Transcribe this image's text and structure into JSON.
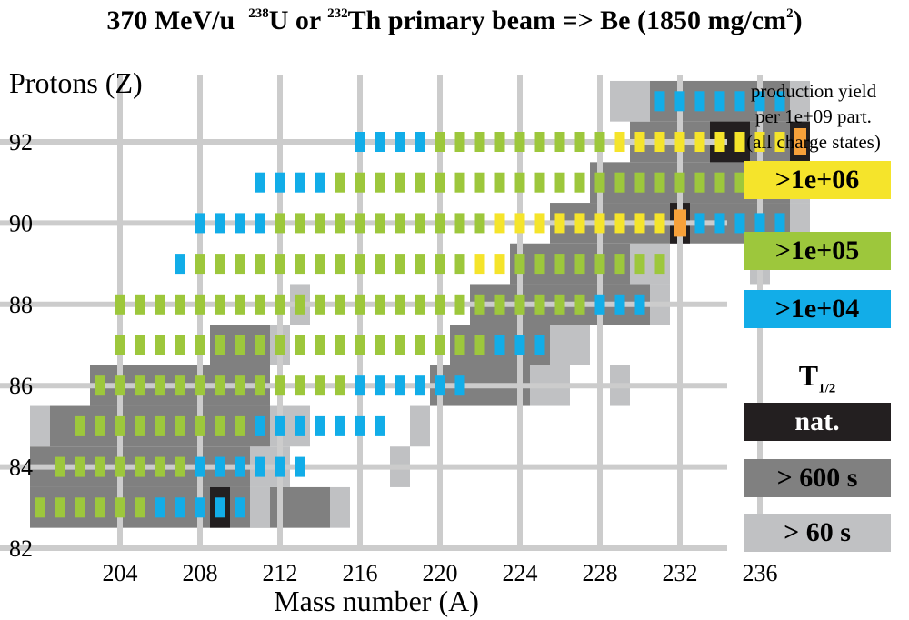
{
  "title": {
    "energy": "370 MeV/u",
    "iso1_mass": "238",
    "iso1_sym": "U",
    "or": "or",
    "iso2_mass": "232",
    "iso2_sym": "Th",
    "rest": "primary beam => Be (1850 mg/cm",
    "exp": "2",
    "close": ")"
  },
  "legend": {
    "yield_lines": [
      "production yield",
      "per 1e+09 part.",
      "(all charge states)"
    ],
    "yield": [
      {
        "label": ">1e+06",
        "color": "#f5e42b"
      },
      {
        "label": ">1e+05",
        "color": "#9dc73c"
      },
      {
        "label": ">1e+04",
        "color": "#12ade8"
      }
    ],
    "thalf_T": "T",
    "thalf_sub": "1/2",
    "thalf": [
      {
        "label": "nat.",
        "color": "#231f20",
        "text_color": "#ffffff"
      },
      {
        "label": "> 600 s",
        "color": "#808080",
        "text_color": "#000000"
      },
      {
        "label": "> 60 s",
        "color": "#c0c1c3",
        "text_color": "#000000"
      }
    ]
  },
  "chart_data": {
    "type": "heatmap",
    "title": "370 MeV/u 238U or 232Th primary beam => Be (1850 mg/cm2)",
    "xlabel": "Mass number (A)",
    "ylabel": "Protons (Z)",
    "xlim": [
      200,
      240
    ],
    "ylim": [
      82,
      93.5
    ],
    "x_ticks": [
      204,
      208,
      212,
      216,
      220,
      224,
      228,
      232,
      236
    ],
    "y_ticks": [
      82,
      84,
      86,
      88,
      90,
      92
    ],
    "grid": true,
    "colors": {
      "yield_1e6": "#f5e42b",
      "yield_1e5": "#9dc73c",
      "yield_1e4": "#12ade8",
      "highlight": "#f7a13a",
      "natural": "#231f20",
      "gt600": "#808080",
      "gt60": "#c0c1c3"
    },
    "halflife_cells": [
      {
        "Z": 83,
        "A_from": 200,
        "A_to": 211,
        "class": "gt600"
      },
      {
        "Z": 83,
        "A_from": 212,
        "A_to": 214,
        "class": "gt600"
      },
      {
        "Z": 83,
        "A_from": 211,
        "A_to": 211,
        "class": "gt60"
      },
      {
        "Z": 83,
        "A_from": 215,
        "A_to": 215,
        "class": "gt60"
      },
      {
        "Z": 84,
        "A_from": 200,
        "A_to": 210,
        "class": "gt600"
      },
      {
        "Z": 84,
        "A_from": 211,
        "A_to": 212,
        "class": "gt60"
      },
      {
        "Z": 84,
        "A_from": 218,
        "A_to": 218,
        "class": "gt60"
      },
      {
        "Z": 85,
        "A_from": 200,
        "A_to": 200,
        "class": "gt60"
      },
      {
        "Z": 85,
        "A_from": 201,
        "A_to": 211,
        "class": "gt600"
      },
      {
        "Z": 85,
        "A_from": 212,
        "A_to": 213,
        "class": "gt60"
      },
      {
        "Z": 85,
        "A_from": 219,
        "A_to": 219,
        "class": "gt60"
      },
      {
        "Z": 86,
        "A_from": 203,
        "A_to": 211,
        "class": "gt600"
      },
      {
        "Z": 86,
        "A_from": 220,
        "A_to": 224,
        "class": "gt600"
      },
      {
        "Z": 86,
        "A_from": 225,
        "A_to": 226,
        "class": "gt60"
      },
      {
        "Z": 86,
        "A_from": 229,
        "A_to": 229,
        "class": "gt60"
      },
      {
        "Z": 87,
        "A_from": 209,
        "A_to": 211,
        "class": "gt600"
      },
      {
        "Z": 87,
        "A_from": 212,
        "A_to": 212,
        "class": "gt60"
      },
      {
        "Z": 87,
        "A_from": 221,
        "A_to": 225,
        "class": "gt600"
      },
      {
        "Z": 87,
        "A_from": 226,
        "A_to": 226,
        "class": "gt60"
      },
      {
        "Z": 87,
        "A_from": 227,
        "A_to": 227,
        "class": "gt60"
      },
      {
        "Z": 88,
        "A_from": 213,
        "A_to": 213,
        "class": "gt60"
      },
      {
        "Z": 88,
        "A_from": 222,
        "A_to": 230,
        "class": "gt600"
      },
      {
        "Z": 88,
        "A_from": 231,
        "A_to": 231,
        "class": "gt60"
      },
      {
        "Z": 89,
        "A_from": 224,
        "A_to": 229,
        "class": "gt600"
      },
      {
        "Z": 89,
        "A_from": 230,
        "A_to": 230,
        "class": "gt60"
      },
      {
        "Z": 89,
        "A_from": 231,
        "A_to": 231,
        "class": "gt60"
      },
      {
        "Z": 89,
        "A_from": 236,
        "A_to": 236,
        "class": "gt60"
      },
      {
        "Z": 90,
        "A_from": 226,
        "A_to": 237,
        "class": "gt600"
      },
      {
        "Z": 90,
        "A_from": 238,
        "A_to": 238,
        "class": "gt60"
      },
      {
        "Z": 91,
        "A_from": 228,
        "A_to": 237,
        "class": "gt600"
      },
      {
        "Z": 91,
        "A_from": 238,
        "A_to": 238,
        "class": "gt60"
      },
      {
        "Z": 92,
        "A_from": 230,
        "A_to": 238,
        "class": "gt600"
      },
      {
        "Z": 93,
        "A_from": 229,
        "A_to": 230,
        "class": "gt60"
      },
      {
        "Z": 93,
        "A_from": 231,
        "A_to": 237,
        "class": "gt600"
      },
      {
        "Z": 93,
        "A_from": 238,
        "A_to": 238,
        "class": "gt60"
      },
      {
        "Z": 83,
        "A_from": 209,
        "A_to": 209,
        "class": "natural"
      },
      {
        "Z": 90,
        "A_from": 232,
        "A_to": 232,
        "class": "natural"
      },
      {
        "Z": 92,
        "A_from": 234,
        "A_to": 235,
        "class": "natural"
      },
      {
        "Z": 92,
        "A_from": 238,
        "A_to": 238,
        "class": "natural"
      }
    ],
    "yield_rows": [
      {
        "Z": 83,
        "1e5": [
          200,
          205
        ],
        "1e4": [
          206,
          210
        ]
      },
      {
        "Z": 84,
        "1e5": [
          201,
          207
        ],
        "1e4": [
          208,
          213
        ]
      },
      {
        "Z": 85,
        "1e5": [
          202,
          210
        ],
        "1e4": [
          211,
          217
        ]
      },
      {
        "Z": 86,
        "1e5": [
          203,
          215
        ],
        "1e4": [
          216,
          221
        ]
      },
      {
        "Z": 87,
        "1e5": [
          204,
          222
        ],
        "1e4": [
          223,
          225
        ]
      },
      {
        "Z": 88,
        "1e5": [
          204,
          227
        ],
        "1e4": [
          228,
          230
        ]
      },
      {
        "Z": 89,
        "1e4": [
          207,
          207
        ],
        "1e5": [
          208,
          221
        ],
        "1e6": [
          222,
          223
        ],
        "1e5b": [
          224,
          231
        ]
      },
      {
        "Z": 90,
        "1e4": [
          208,
          211
        ],
        "1e5": [
          212,
          222
        ],
        "1e6": [
          223,
          232
        ],
        "1e4b": [
          233,
          237
        ]
      },
      {
        "Z": 91,
        "1e4": [
          211,
          214
        ],
        "1e5": [
          215,
          237
        ]
      },
      {
        "Z": 92,
        "1e4": [
          216,
          219
        ],
        "1e5": [
          220,
          228
        ],
        "1e6": [
          229,
          238
        ]
      },
      {
        "Z": 93,
        "1e4": [
          231,
          237
        ]
      }
    ],
    "highlight_cells": [
      {
        "Z": 90,
        "A": 232
      },
      {
        "Z": 92,
        "A": 238
      }
    ]
  }
}
